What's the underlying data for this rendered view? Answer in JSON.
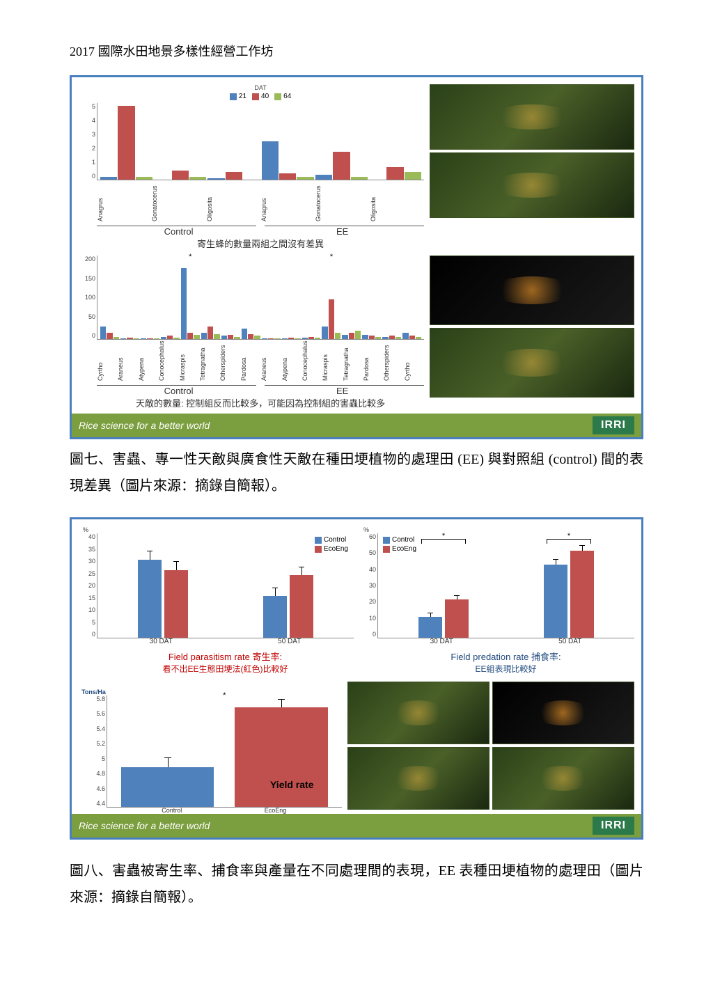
{
  "header": "2017 國際水田地景多樣性經營工作坊",
  "footer_tagline": "Rice science for a better world",
  "irri": "IRRI",
  "caption7": "圖七、害蟲、專一性天敵與廣食性天敵在種田埂植物的處理田 (EE) 與對照組 (control) 間的表現差異（圖片來源：摘錄自簡報）。",
  "caption8": "圖八、害蟲被寄生率、捕食率與產量在不同處理間的表現，EE 表種田埂植物的處理田（圖片來源：摘錄自簡報）。",
  "slide7": {
    "chart1": {
      "ymax": 5,
      "yticks": [
        "5",
        "4",
        "3",
        "2",
        "1",
        "0"
      ],
      "legend_title": "DAT",
      "legend": [
        {
          "label": "21",
          "color": "#4f81bd"
        },
        {
          "label": "40",
          "color": "#c0504d"
        },
        {
          "label": "64",
          "color": "#9bbb59"
        }
      ],
      "categories": [
        "Anagrus",
        "Gonatocerus",
        "Oligosita",
        "Anagrus",
        "Gonatocerus",
        "Oligosita"
      ],
      "series21": [
        0.2,
        0,
        0.1,
        2.5,
        0.3,
        0
      ],
      "series40": [
        4.8,
        0.6,
        0.5,
        0.4,
        1.8,
        0.8
      ],
      "series64": [
        0.2,
        0.2,
        0,
        0.2,
        0.2,
        0.5
      ],
      "group_labels": [
        "Control",
        "EE"
      ],
      "note": "寄生蜂的數量兩組之間沒有差異"
    },
    "chart2": {
      "ymax": 200,
      "yticks": [
        "200",
        "150",
        "100",
        "50",
        "0"
      ],
      "categories": [
        "Cyrtho",
        "Araneus",
        "Atypena",
        "Conocephalus",
        "Micraspis",
        "Tetragnatha",
        "Otherspiders",
        "Pardosa",
        "Araneus",
        "Atypena",
        "Conocephalus",
        "Micraspis",
        "Tetragnatha",
        "Pardosa",
        "Otherspiders",
        "Cyrtho"
      ],
      "series21": [
        30,
        2,
        2,
        5,
        170,
        15,
        8,
        25,
        2,
        2,
        3,
        30,
        10,
        10,
        5,
        15
      ],
      "series40": [
        15,
        3,
        1,
        8,
        15,
        30,
        10,
        12,
        2,
        3,
        5,
        95,
        15,
        8,
        8,
        8
      ],
      "series64": [
        5,
        2,
        1,
        3,
        10,
        12,
        5,
        8,
        1,
        2,
        3,
        15,
        20,
        5,
        5,
        5
      ],
      "group_labels": [
        "Control",
        "EE"
      ],
      "note": "天敵的數量: 控制組反而比較多，可能因為控制組的害蟲比較多",
      "stars": [
        4,
        11
      ]
    }
  },
  "slide8": {
    "chartA": {
      "title_en": "Field parasitism rate",
      "title_zh": "寄生率:",
      "subtitle": "看不出EE生態田埂法(紅色)比較好",
      "ylabel": "%",
      "ymax": 40,
      "yticks": [
        "40",
        "35",
        "30",
        "25",
        "20",
        "15",
        "10",
        "5",
        "0"
      ],
      "legend": [
        {
          "label": "Control",
          "color": "#4f81bd"
        },
        {
          "label": "EcoEng",
          "color": "#c0504d"
        }
      ],
      "categories": [
        "30 DAT",
        "50 DAT"
      ],
      "control": [
        30,
        16
      ],
      "ecoeng": [
        26,
        24
      ],
      "err": [
        3,
        3,
        3,
        3
      ]
    },
    "chartB": {
      "title_en": "Field predation rate",
      "title_zh": "捕食率:",
      "subtitle": "EE組表現比較好",
      "ylabel": "%",
      "ymax": 60,
      "yticks": [
        "60",
        "50",
        "40",
        "30",
        "20",
        "10",
        "0"
      ],
      "legend": [
        {
          "label": "Control",
          "color": "#4f81bd"
        },
        {
          "label": "EcoEng",
          "color": "#c0504d"
        }
      ],
      "categories": [
        "30 DAT",
        "50 DAT"
      ],
      "control": [
        12,
        42
      ],
      "ecoeng": [
        22,
        50
      ],
      "err": [
        2,
        2,
        3,
        3
      ],
      "stars": [
        0,
        1
      ]
    },
    "chartC": {
      "label": "Yield rate",
      "ylabel": "Tons/Ha",
      "ymax": 5.8,
      "ymin": 4.4,
      "yticks": [
        "5.8",
        "5.6",
        "5.4",
        "5.2",
        "5",
        "4.8",
        "4.6",
        "4.4"
      ],
      "categories": [
        "Control",
        "EcoEng"
      ],
      "values": [
        4.9,
        5.65
      ],
      "colors": [
        "#4f81bd",
        "#c0504d"
      ],
      "err": [
        0.12,
        0.1
      ],
      "star": true
    }
  },
  "colors": {
    "blue": "#4f81bd",
    "red": "#c0504d",
    "green": "#9bbb59",
    "slide_border": "#4a7fbf",
    "footer_bg": "#7b9e3e",
    "irri_bg": "#2c7a4a",
    "note_red": "#c00000",
    "note_blue": "#1f497d",
    "axis": "#888888"
  }
}
